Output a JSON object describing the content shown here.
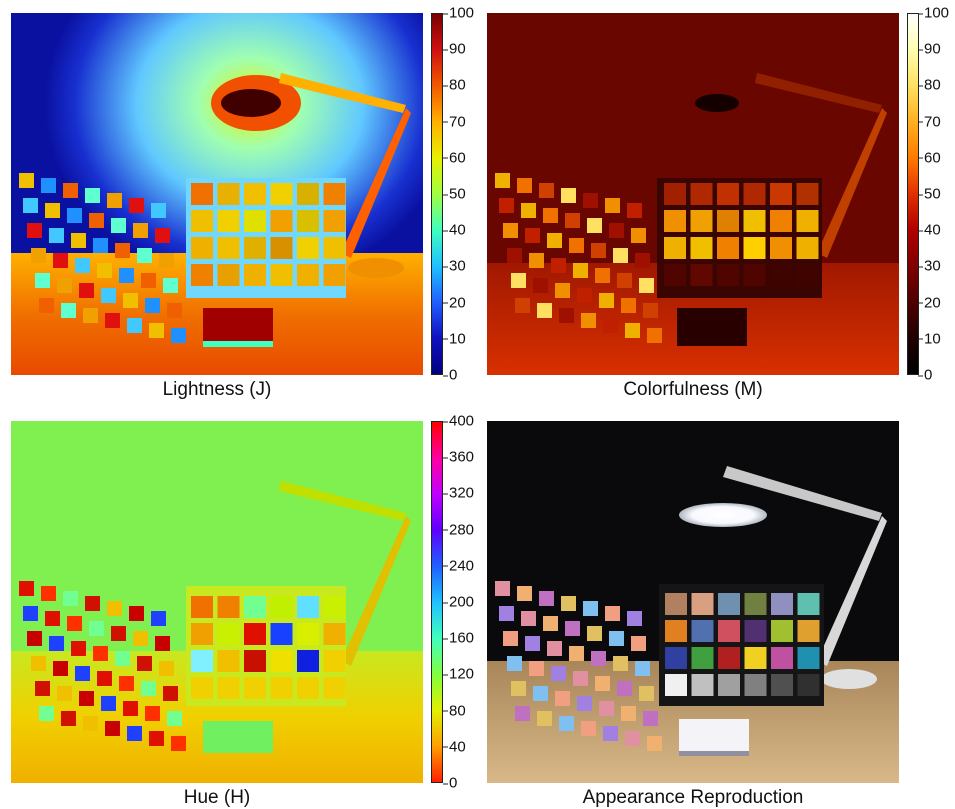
{
  "panels": {
    "lightness": {
      "caption": "Lightness (J)",
      "colorbar": {
        "ticks": [
          "100",
          "90",
          "80",
          "70",
          "60",
          "50",
          "40",
          "30",
          "20",
          "10",
          "0"
        ],
        "gradient": [
          "#7a0000",
          "#d01010",
          "#f05a00",
          "#ffb000",
          "#e8f000",
          "#a0ff40",
          "#40ffc0",
          "#20c0ff",
          "#2060ff",
          "#1010c0",
          "#000080"
        ]
      }
    },
    "colorfulness": {
      "caption": "Colorfulness (M)",
      "colorbar": {
        "ticks": [
          "100",
          "90",
          "80",
          "70",
          "60",
          "50",
          "40",
          "30",
          "20",
          "10",
          "0"
        ],
        "gradient": [
          "#ffffff",
          "#ffffb0",
          "#ffe060",
          "#ffb020",
          "#ff7a00",
          "#e03000",
          "#b00000",
          "#800000",
          "#500000",
          "#200000",
          "#000000"
        ]
      }
    },
    "hue": {
      "caption": "Hue (H)",
      "colorbar": {
        "ticks": [
          "400",
          "360",
          "320",
          "280",
          "240",
          "200",
          "160",
          "120",
          "80",
          "40",
          "0"
        ],
        "gradient": [
          "#ff0000",
          "#ff00a0",
          "#c000ff",
          "#6000ff",
          "#2060ff",
          "#20c0ff",
          "#40ffc0",
          "#80ff40",
          "#e0f000",
          "#ffa000",
          "#ff2000"
        ]
      }
    },
    "reproduction": {
      "caption": "Appearance Reproduction"
    }
  }
}
